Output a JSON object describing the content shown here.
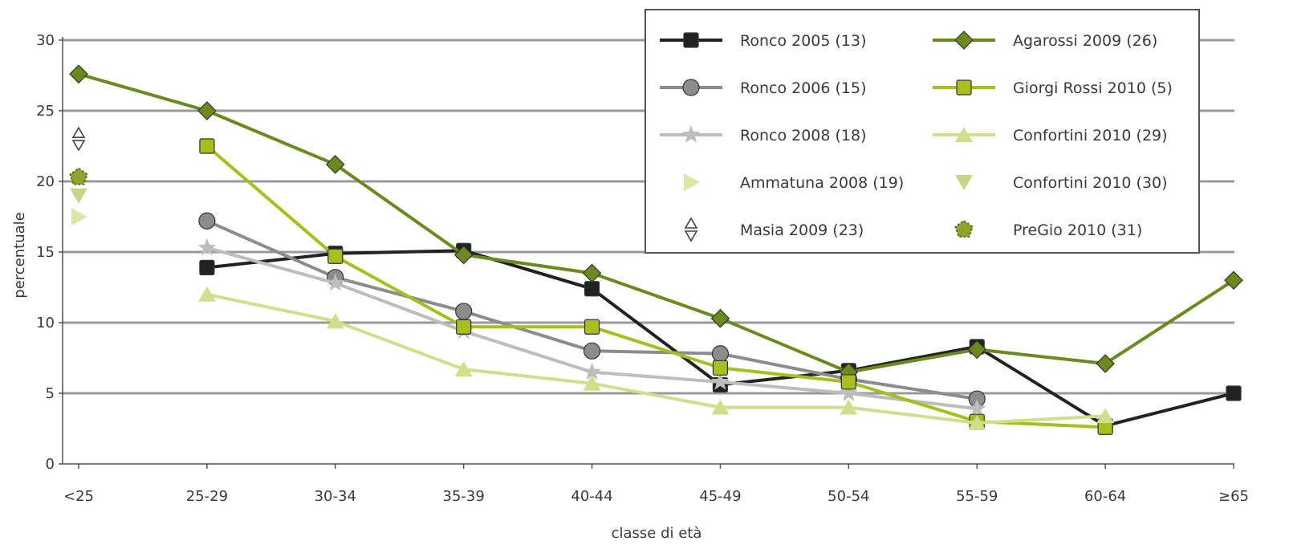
{
  "chart_data": {
    "type": "line",
    "xlabel": "classe di età",
    "ylabel": "percentuale",
    "ylim": [
      0,
      30
    ],
    "yticks": [
      0,
      5,
      10,
      15,
      20,
      25,
      30
    ],
    "grid": "horizontal",
    "legend_position": "top-right",
    "categories": [
      "<25",
      "25-29",
      "30-34",
      "35-39",
      "40-44",
      "45-49",
      "50-54",
      "55-59",
      "60-64",
      "≥65"
    ],
    "series": [
      {
        "name": "Ronco 2005 (13)",
        "marker": "square",
        "color": "#222222",
        "line": true,
        "values": [
          null,
          13.9,
          14.9,
          15.1,
          12.4,
          5.6,
          6.6,
          8.3,
          2.7,
          5.0
        ]
      },
      {
        "name": "Ronco 2006 (15)",
        "marker": "circle",
        "color": "#8c8c8c",
        "line": true,
        "values": [
          null,
          17.2,
          13.2,
          10.8,
          8.0,
          7.8,
          6.0,
          4.6,
          null,
          null
        ]
      },
      {
        "name": "Ronco 2008 (18)",
        "marker": "star",
        "color": "#bdbdbd",
        "line": true,
        "values": [
          null,
          15.3,
          12.8,
          9.4,
          6.5,
          5.8,
          5.0,
          3.9,
          null,
          null
        ]
      },
      {
        "name": "Ammatuna 2008 (19)",
        "marker": "triangle-right",
        "color": "#dbe7a3",
        "line": false,
        "values": [
          17.5,
          null,
          null,
          null,
          null,
          null,
          null,
          null,
          null,
          null
        ]
      },
      {
        "name": "Masia 2009 (23)",
        "marker": "double-triangle",
        "color": "#444444",
        "line": false,
        "values": [
          23.0,
          null,
          null,
          null,
          null,
          null,
          null,
          null,
          null,
          null
        ]
      },
      {
        "name": "Agarossi 2009 (26)",
        "marker": "diamond",
        "color": "#6b8a1e",
        "line": true,
        "values": [
          27.6,
          25.0,
          21.2,
          14.8,
          13.5,
          10.3,
          6.5,
          8.1,
          7.1,
          13.0
        ]
      },
      {
        "name": "Giorgi Rossi 2010 (5)",
        "marker": "square",
        "color": "#a8be1c",
        "line": true,
        "values": [
          null,
          22.5,
          14.7,
          9.7,
          9.7,
          6.8,
          5.8,
          3.0,
          2.6,
          null
        ]
      },
      {
        "name": "Confortini 2010 (29)",
        "marker": "triangle-up",
        "color": "#cfe08c",
        "line": true,
        "values": [
          null,
          12.0,
          10.1,
          6.7,
          5.7,
          4.0,
          4.0,
          2.9,
          3.4,
          null
        ]
      },
      {
        "name": "Confortini 2010 (30)",
        "marker": "triangle-down",
        "color": "#c5d686",
        "line": false,
        "values": [
          19.0,
          null,
          null,
          null,
          null,
          null,
          null,
          null,
          null,
          null
        ]
      },
      {
        "name": "PreGio 2010 (31)",
        "marker": "pentagon",
        "color": "#8ea42c",
        "line": false,
        "values": [
          20.3,
          null,
          null,
          null,
          null,
          null,
          null,
          null,
          null,
          null
        ]
      }
    ],
    "legend_left": [
      0,
      1,
      2,
      3,
      4
    ],
    "legend_right": [
      5,
      6,
      7,
      8,
      9
    ]
  }
}
